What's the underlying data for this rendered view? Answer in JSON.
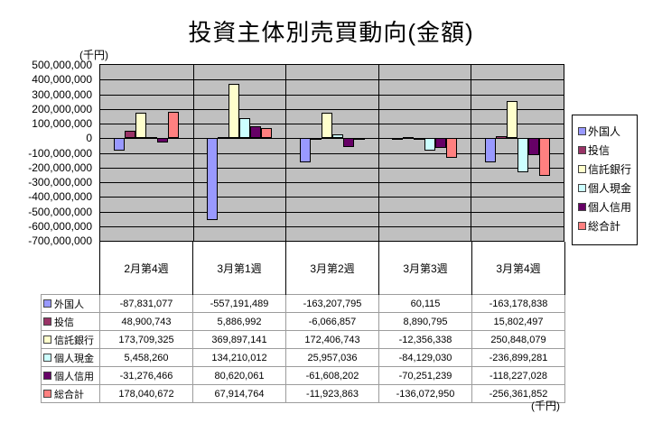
{
  "title": "投資主体別売買動向(金額)",
  "unit_label_top": "(千円)",
  "unit_label_bottom": "(千円)",
  "chart_data": {
    "type": "bar",
    "title": "投資主体別売買動向(金額)",
    "ylabel": "(千円)",
    "xlabel": "",
    "ylim": [
      -700000000,
      500000000
    ],
    "ytick_step": 100000000,
    "grid": true,
    "legend_position": "right",
    "plot_bg_color": "#C0C0C0",
    "categories": [
      "2月第4週",
      "3月第1週",
      "3月第2週",
      "3月第3週",
      "3月第4週"
    ],
    "series": [
      {
        "name": "外国人",
        "color": "#9999FF",
        "values": [
          -87831077,
          -557191489,
          -163207795,
          60115,
          -163178838
        ]
      },
      {
        "name": "投信",
        "color": "#993366",
        "values": [
          48900743,
          5886992,
          -6066857,
          8890795,
          15802497
        ]
      },
      {
        "name": "信託銀行",
        "color": "#FFFFCC",
        "values": [
          173709325,
          369897141,
          172406743,
          -12356338,
          250848079
        ]
      },
      {
        "name": "個人現金",
        "color": "#CCFFFF",
        "values": [
          5458260,
          134210012,
          25957036,
          -84129030,
          -236899281
        ]
      },
      {
        "name": "個人信用",
        "color": "#660066",
        "values": [
          -31276466,
          80620061,
          -61608202,
          -70251239,
          -118227028
        ]
      },
      {
        "name": "総合計",
        "color": "#FF8080",
        "values": [
          178040672,
          67914764,
          -11923863,
          -136072950,
          -256361852
        ]
      }
    ]
  }
}
